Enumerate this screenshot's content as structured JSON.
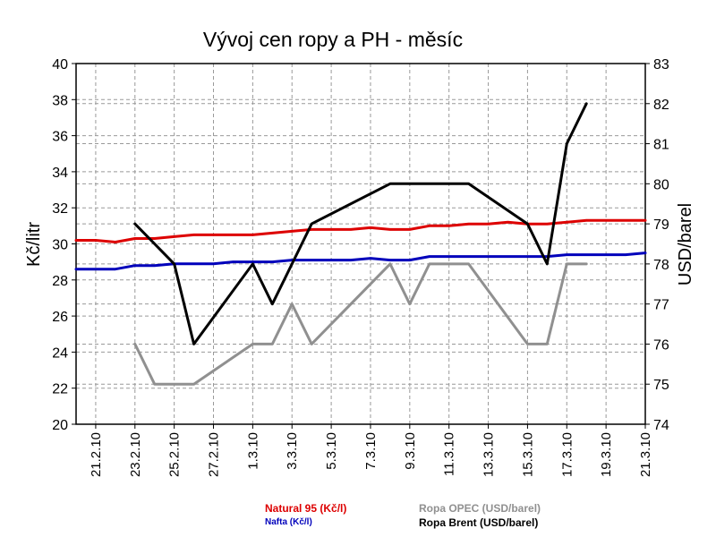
{
  "chart_data": {
    "type": "line",
    "title": "Vývoj cen ropy a PH - měsíc",
    "ylabel_left": "Kč/litr",
    "ylabel_right": "USD/barel",
    "ylim_left": [
      20,
      40
    ],
    "ylim_right": [
      74,
      83
    ],
    "yticks_left": [
      "20",
      "22",
      "24",
      "26",
      "28",
      "30",
      "32",
      "34",
      "36",
      "38",
      "40"
    ],
    "yticks_right": [
      "74",
      "75",
      "76",
      "77",
      "78",
      "79",
      "80",
      "81",
      "82",
      "83"
    ],
    "x_dates": [
      "20.2.10",
      "21.2.10",
      "22.2.10",
      "23.2.10",
      "24.2.10",
      "25.2.10",
      "26.2.10",
      "27.2.10",
      "28.2.10",
      "1.3.10",
      "2.3.10",
      "3.3.10",
      "4.3.10",
      "5.3.10",
      "6.3.10",
      "7.3.10",
      "8.3.10",
      "9.3.10",
      "10.3.10",
      "11.3.10",
      "12.3.10",
      "13.3.10",
      "14.3.10",
      "15.3.10",
      "16.3.10",
      "17.3.10",
      "18.3.10",
      "19.3.10",
      "20.3.10",
      "21.3.10"
    ],
    "xtick_labels": [
      "21.2.10",
      "23.2.10",
      "25.2.10",
      "27.2.10",
      "1.3.10",
      "3.3.10",
      "5.3.10",
      "7.3.10",
      "9.3.10",
      "11.3.10",
      "13.3.10",
      "15.3.10",
      "17.3.10",
      "19.3.10",
      "21.3.10"
    ],
    "grid": true,
    "series": [
      {
        "name": "Natural 95 (Kč/l)",
        "axis": "left",
        "color": "#dd0000",
        "x": [
          "20.2.10",
          "21.2.10",
          "22.2.10",
          "23.2.10",
          "24.2.10",
          "25.2.10",
          "26.2.10",
          "27.2.10",
          "28.2.10",
          "1.3.10",
          "2.3.10",
          "3.3.10",
          "4.3.10",
          "5.3.10",
          "6.3.10",
          "7.3.10",
          "8.3.10",
          "9.3.10",
          "10.3.10",
          "11.3.10",
          "12.3.10",
          "13.3.10",
          "14.3.10",
          "15.3.10",
          "16.3.10",
          "17.3.10",
          "18.3.10",
          "19.3.10",
          "20.3.10",
          "21.3.10"
        ],
        "y": [
          30.2,
          30.2,
          30.1,
          30.3,
          30.3,
          30.4,
          30.5,
          30.5,
          30.5,
          30.5,
          30.6,
          30.7,
          30.8,
          30.8,
          30.8,
          30.9,
          30.8,
          30.8,
          31.0,
          31.0,
          31.1,
          31.1,
          31.2,
          31.1,
          31.1,
          31.2,
          31.3,
          31.3,
          31.3,
          31.3
        ]
      },
      {
        "name": "Nafta (Kč/l)",
        "axis": "left",
        "color": "#0000bb",
        "x": [
          "20.2.10",
          "21.2.10",
          "22.2.10",
          "23.2.10",
          "24.2.10",
          "25.2.10",
          "26.2.10",
          "27.2.10",
          "28.2.10",
          "1.3.10",
          "2.3.10",
          "3.3.10",
          "4.3.10",
          "5.3.10",
          "6.3.10",
          "7.3.10",
          "8.3.10",
          "9.3.10",
          "10.3.10",
          "11.3.10",
          "12.3.10",
          "13.3.10",
          "14.3.10",
          "15.3.10",
          "16.3.10",
          "17.3.10",
          "18.3.10",
          "19.3.10",
          "20.3.10",
          "21.3.10"
        ],
        "y": [
          28.6,
          28.6,
          28.6,
          28.8,
          28.8,
          28.9,
          28.9,
          28.9,
          29.0,
          29.0,
          29.0,
          29.1,
          29.1,
          29.1,
          29.1,
          29.2,
          29.1,
          29.1,
          29.3,
          29.3,
          29.3,
          29.3,
          29.3,
          29.3,
          29.3,
          29.4,
          29.4,
          29.4,
          29.4,
          29.5
        ]
      },
      {
        "name": "Ropa OPEC (USD/barel)",
        "axis": "right",
        "color": "#909090",
        "x": [
          "23.2.10",
          "24.2.10",
          "26.2.10",
          "1.3.10",
          "2.3.10",
          "3.3.10",
          "4.3.10",
          "8.3.10",
          "9.3.10",
          "10.3.10",
          "12.3.10",
          "15.3.10",
          "16.3.10",
          "17.3.10",
          "18.3.10"
        ],
        "y": [
          76.0,
          75.0,
          75.0,
          76.0,
          76.0,
          77.0,
          76.0,
          78.0,
          77.0,
          78.0,
          78.0,
          76.0,
          76.0,
          78.0,
          78.0
        ]
      },
      {
        "name": "Ropa Brent (USD/barel)",
        "axis": "right",
        "color": "#000000",
        "x": [
          "23.2.10",
          "25.2.10",
          "26.2.10",
          "1.3.10",
          "2.3.10",
          "4.3.10",
          "8.3.10",
          "12.3.10",
          "15.3.10",
          "16.3.10",
          "17.3.10",
          "18.3.10"
        ],
        "y": [
          79.0,
          78.0,
          76.0,
          78.0,
          77.0,
          79.0,
          80.0,
          80.0,
          79.0,
          78.0,
          81.0,
          82.0
        ]
      }
    ]
  },
  "legend": {
    "natural": "Natural 95 (Kč/l)",
    "nafta": "Nafta (Kč/l)",
    "opec": "Ropa OPEC (USD/barel)",
    "brent": "Ropa Brent (USD/barel)"
  },
  "colors": {
    "natural": "#dd0000",
    "nafta": "#0000bb",
    "opec": "#909090",
    "brent": "#000000",
    "grid": "#999999"
  }
}
